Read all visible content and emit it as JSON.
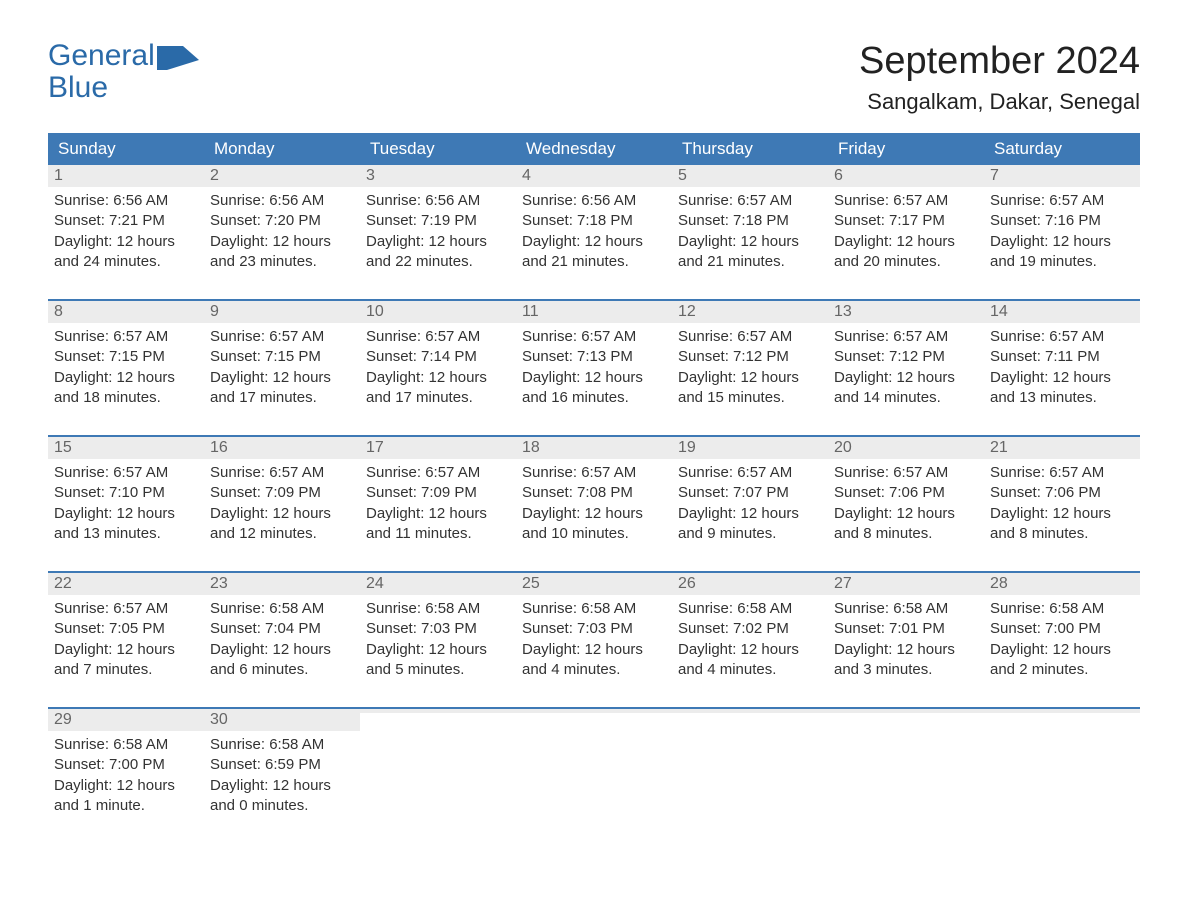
{
  "logo": {
    "line1": "General",
    "line2": "Blue"
  },
  "title": "September 2024",
  "location": "Sangalkam, Dakar, Senegal",
  "colors": {
    "header_bg": "#3e79b5",
    "header_text": "#ffffff",
    "daynum_bg": "#ececec",
    "daynum_text": "#666666",
    "body_text": "#333333",
    "logo_color": "#2a6aa8",
    "week_border": "#3e79b5",
    "page_bg": "#ffffff"
  },
  "typography": {
    "title_fontsize": 38,
    "location_fontsize": 22,
    "weekday_fontsize": 17,
    "daynum_fontsize": 16,
    "body_fontsize": 15,
    "logo_fontsize": 30
  },
  "layout": {
    "columns": 7,
    "rows": 5,
    "cell_min_height": 96
  },
  "weekdays": [
    "Sunday",
    "Monday",
    "Tuesday",
    "Wednesday",
    "Thursday",
    "Friday",
    "Saturday"
  ],
  "days": [
    {
      "n": "1",
      "sunrise": "6:56 AM",
      "sunset": "7:21 PM",
      "daylight": "12 hours and 24 minutes."
    },
    {
      "n": "2",
      "sunrise": "6:56 AM",
      "sunset": "7:20 PM",
      "daylight": "12 hours and 23 minutes."
    },
    {
      "n": "3",
      "sunrise": "6:56 AM",
      "sunset": "7:19 PM",
      "daylight": "12 hours and 22 minutes."
    },
    {
      "n": "4",
      "sunrise": "6:56 AM",
      "sunset": "7:18 PM",
      "daylight": "12 hours and 21 minutes."
    },
    {
      "n": "5",
      "sunrise": "6:57 AM",
      "sunset": "7:18 PM",
      "daylight": "12 hours and 21 minutes."
    },
    {
      "n": "6",
      "sunrise": "6:57 AM",
      "sunset": "7:17 PM",
      "daylight": "12 hours and 20 minutes."
    },
    {
      "n": "7",
      "sunrise": "6:57 AM",
      "sunset": "7:16 PM",
      "daylight": "12 hours and 19 minutes."
    },
    {
      "n": "8",
      "sunrise": "6:57 AM",
      "sunset": "7:15 PM",
      "daylight": "12 hours and 18 minutes."
    },
    {
      "n": "9",
      "sunrise": "6:57 AM",
      "sunset": "7:15 PM",
      "daylight": "12 hours and 17 minutes."
    },
    {
      "n": "10",
      "sunrise": "6:57 AM",
      "sunset": "7:14 PM",
      "daylight": "12 hours and 17 minutes."
    },
    {
      "n": "11",
      "sunrise": "6:57 AM",
      "sunset": "7:13 PM",
      "daylight": "12 hours and 16 minutes."
    },
    {
      "n": "12",
      "sunrise": "6:57 AM",
      "sunset": "7:12 PM",
      "daylight": "12 hours and 15 minutes."
    },
    {
      "n": "13",
      "sunrise": "6:57 AM",
      "sunset": "7:12 PM",
      "daylight": "12 hours and 14 minutes."
    },
    {
      "n": "14",
      "sunrise": "6:57 AM",
      "sunset": "7:11 PM",
      "daylight": "12 hours and 13 minutes."
    },
    {
      "n": "15",
      "sunrise": "6:57 AM",
      "sunset": "7:10 PM",
      "daylight": "12 hours and 13 minutes."
    },
    {
      "n": "16",
      "sunrise": "6:57 AM",
      "sunset": "7:09 PM",
      "daylight": "12 hours and 12 minutes."
    },
    {
      "n": "17",
      "sunrise": "6:57 AM",
      "sunset": "7:09 PM",
      "daylight": "12 hours and 11 minutes."
    },
    {
      "n": "18",
      "sunrise": "6:57 AM",
      "sunset": "7:08 PM",
      "daylight": "12 hours and 10 minutes."
    },
    {
      "n": "19",
      "sunrise": "6:57 AM",
      "sunset": "7:07 PM",
      "daylight": "12 hours and 9 minutes."
    },
    {
      "n": "20",
      "sunrise": "6:57 AM",
      "sunset": "7:06 PM",
      "daylight": "12 hours and 8 minutes."
    },
    {
      "n": "21",
      "sunrise": "6:57 AM",
      "sunset": "7:06 PM",
      "daylight": "12 hours and 8 minutes."
    },
    {
      "n": "22",
      "sunrise": "6:57 AM",
      "sunset": "7:05 PM",
      "daylight": "12 hours and 7 minutes."
    },
    {
      "n": "23",
      "sunrise": "6:58 AM",
      "sunset": "7:04 PM",
      "daylight": "12 hours and 6 minutes."
    },
    {
      "n": "24",
      "sunrise": "6:58 AM",
      "sunset": "7:03 PM",
      "daylight": "12 hours and 5 minutes."
    },
    {
      "n": "25",
      "sunrise": "6:58 AM",
      "sunset": "7:03 PM",
      "daylight": "12 hours and 4 minutes."
    },
    {
      "n": "26",
      "sunrise": "6:58 AM",
      "sunset": "7:02 PM",
      "daylight": "12 hours and 4 minutes."
    },
    {
      "n": "27",
      "sunrise": "6:58 AM",
      "sunset": "7:01 PM",
      "daylight": "12 hours and 3 minutes."
    },
    {
      "n": "28",
      "sunrise": "6:58 AM",
      "sunset": "7:00 PM",
      "daylight": "12 hours and 2 minutes."
    },
    {
      "n": "29",
      "sunrise": "6:58 AM",
      "sunset": "7:00 PM",
      "daylight": "12 hours and 1 minute."
    },
    {
      "n": "30",
      "sunrise": "6:58 AM",
      "sunset": "6:59 PM",
      "daylight": "12 hours and 0 minutes."
    }
  ],
  "labels": {
    "sunrise_prefix": "Sunrise: ",
    "sunset_prefix": "Sunset: ",
    "daylight_prefix": "Daylight: "
  }
}
